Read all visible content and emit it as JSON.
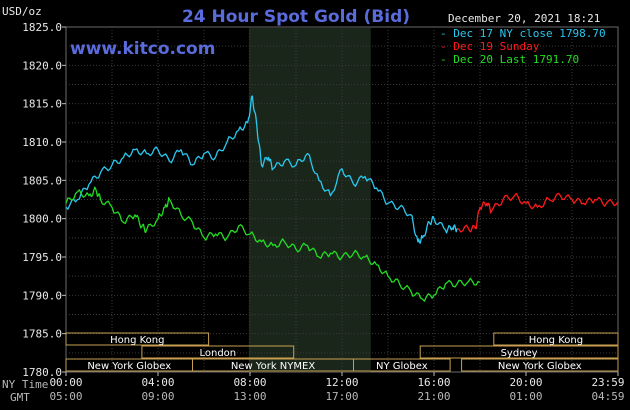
{
  "header": {
    "title": "24 Hour Spot Gold (Bid)",
    "ylabel": "USD/oz",
    "website": "www.kitco.com",
    "datetime": "December 20, 2021 18:21"
  },
  "legend": [
    {
      "label": "Dec 17 NY close 1798.70",
      "color": "#28c8f0"
    },
    {
      "label": "Dec 19 Sunday",
      "color": "#ff1a1a"
    },
    {
      "label": "Dec 20 Last 1791.70",
      "color": "#22dd22"
    }
  ],
  "time_rows": {
    "ny_label": "NY Time",
    "gmt_label": "GMT"
  },
  "sessions": {
    "row1": [
      {
        "label": "Hong Kong"
      },
      {
        "label": "Hong Kong"
      }
    ],
    "row2": [
      {
        "label": "London"
      },
      {
        "label": "Sydney"
      }
    ],
    "row3": [
      {
        "label": "New York Globex"
      },
      {
        "label": "New York NYMEX"
      },
      {
        "label": "NY Globex"
      },
      {
        "label": "New York Globex"
      }
    ]
  },
  "chart_data": {
    "type": "line",
    "title": "24 Hour Spot Gold (Bid)",
    "ylabel": "USD/oz",
    "ylim": [
      1780,
      1825
    ],
    "yticks": [
      "1780.0",
      "1785.0",
      "1790.0",
      "1795.0",
      "1800.0",
      "1805.0",
      "1810.0",
      "1815.0",
      "1820.0",
      "1825.0"
    ],
    "xlim_hours": [
      0,
      24
    ],
    "xticks_ny": [
      "00:00",
      "04:00",
      "08:00",
      "12:00",
      "16:00",
      "20:00",
      "23:59"
    ],
    "xticks_gmt": [
      "05:00",
      "09:00",
      "13:00",
      "17:00",
      "21:00",
      "01:00",
      "04:59"
    ],
    "highlight_hours": [
      7.95,
      13.25
    ],
    "grid": true,
    "series": [
      {
        "name": "Dec 17 NY close 1798.70",
        "color": "#28c8f0",
        "x": [
          0.0,
          0.5,
          1.0,
          1.5,
          2.0,
          2.5,
          3.0,
          3.5,
          4.0,
          4.5,
          5.0,
          5.5,
          6.0,
          6.5,
          7.0,
          7.5,
          7.9,
          8.1,
          8.3,
          8.5,
          8.8,
          9.0,
          9.5,
          10.0,
          10.5,
          11.0,
          11.5,
          12.0,
          12.5,
          13.0,
          13.5,
          14.0,
          14.5,
          15.0,
          15.3,
          15.5,
          15.8,
          16.0,
          16.5,
          16.8,
          17.0
        ],
        "y": [
          1801.5,
          1802.5,
          1804.5,
          1806.0,
          1807.0,
          1808.0,
          1809.0,
          1808.5,
          1809.0,
          1807.5,
          1809.0,
          1807.0,
          1808.5,
          1808.0,
          1810.0,
          1811.5,
          1812.5,
          1816.0,
          1812.0,
          1807.0,
          1808.0,
          1806.5,
          1807.5,
          1807.0,
          1808.5,
          1805.0,
          1803.0,
          1806.5,
          1804.5,
          1805.5,
          1804.0,
          1802.0,
          1801.5,
          1800.5,
          1797.0,
          1797.5,
          1799.5,
          1800.0,
          1798.5,
          1798.8,
          1798.7
        ]
      },
      {
        "name": "Dec 19 Sunday",
        "color": "#ff1a1a",
        "x": [
          17.0,
          17.5,
          17.8,
          18.0,
          18.3,
          18.5,
          19.0,
          19.5,
          20.0,
          20.5,
          21.0,
          21.5,
          22.0,
          22.5,
          23.0,
          23.5,
          24.0
        ],
        "y": [
          1798.7,
          1798.7,
          1798.7,
          1801.5,
          1802.0,
          1801.0,
          1802.5,
          1803.0,
          1802.0,
          1801.5,
          1802.5,
          1803.0,
          1802.5,
          1802.0,
          1802.5,
          1802.0,
          1802.2
        ]
      },
      {
        "name": "Dec 20 Last 1791.70",
        "color": "#22dd22",
        "x": [
          0.0,
          0.5,
          1.0,
          1.3,
          1.5,
          2.0,
          2.5,
          3.0,
          3.3,
          3.5,
          4.0,
          4.3,
          4.5,
          5.0,
          5.5,
          6.0,
          6.5,
          7.0,
          7.5,
          8.0,
          8.5,
          9.0,
          9.5,
          10.0,
          10.5,
          11.0,
          11.5,
          12.0,
          12.5,
          13.0,
          13.5,
          14.0,
          14.5,
          15.0,
          15.5,
          16.0,
          16.5,
          17.0,
          17.5,
          18.0
        ],
        "y": [
          1802.0,
          1803.5,
          1803.0,
          1803.8,
          1802.5,
          1801.5,
          1799.5,
          1800.5,
          1799.0,
          1798.5,
          1800.0,
          1801.5,
          1802.5,
          1800.5,
          1799.5,
          1797.5,
          1798.0,
          1797.5,
          1799.0,
          1798.0,
          1797.0,
          1796.5,
          1797.0,
          1796.0,
          1796.5,
          1795.0,
          1795.5,
          1795.0,
          1795.5,
          1795.0,
          1794.0,
          1792.5,
          1791.5,
          1790.5,
          1789.5,
          1790.0,
          1791.5,
          1791.5,
          1791.8,
          1791.7
        ]
      }
    ]
  }
}
